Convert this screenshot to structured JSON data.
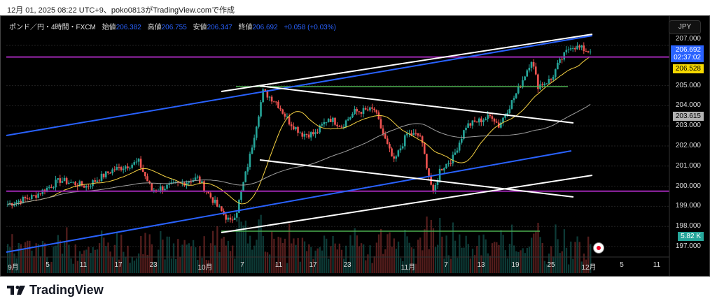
{
  "caption": "12月 01, 2025 08:22 UTC+9、poko0813がTradingView.comで作成",
  "legend": {
    "symbol": "ポンド／円・4時間・FXCM",
    "open_label": "始値",
    "open": "206.382",
    "high_label": "高値",
    "high": "206.755",
    "low_label": "安値",
    "low": "206.347",
    "close_label": "終値",
    "close": "206.692",
    "change": "+0.058 (+0.03%)"
  },
  "currency": "JPY",
  "price_axis": [
    "207.000",
    "205.000",
    "204.000",
    "203.000",
    "202.000",
    "201.000",
    "200.000",
    "199.000",
    "198.000",
    "197.000"
  ],
  "tags": {
    "last_price": "206.692",
    "countdown": "02:37:02",
    "ma_fast": "206.528",
    "ma_slow": "203.615",
    "volume": "5.82 K"
  },
  "time_axis": [
    "9月",
    "5",
    "11",
    "17",
    "23",
    "10月",
    "7",
    "11",
    "17",
    "23",
    "11月",
    "7",
    "13",
    "19",
    "25",
    "12月",
    "5",
    "11"
  ],
  "colors": {
    "up": "#26a69a",
    "down": "#ef5350",
    "blue_line": "#2962ff",
    "purple": "#9c27b0",
    "green": "#4caf50",
    "ma_fast": "#f5d142",
    "ma_slow": "#9e9e9e"
  },
  "chart_data": {
    "type": "candlestick",
    "price_path": [
      [
        0,
        199.1
      ],
      [
        4,
        199.5
      ],
      [
        8,
        200.3
      ],
      [
        12,
        200.0
      ],
      [
        16,
        200.8
      ],
      [
        20,
        201.2
      ],
      [
        22,
        199.8
      ],
      [
        26,
        200.1
      ],
      [
        29,
        200.4
      ],
      [
        32,
        199.0
      ],
      [
        34,
        198.2
      ],
      [
        35,
        198.8
      ],
      [
        37,
        201.5
      ],
      [
        39,
        204.7
      ],
      [
        41,
        204.2
      ],
      [
        43,
        203.2
      ],
      [
        45,
        202.6
      ],
      [
        47,
        202.6
      ],
      [
        49,
        203.4
      ],
      [
        51,
        203.0
      ],
      [
        53,
        203.7
      ],
      [
        56,
        203.8
      ],
      [
        58,
        202.0
      ],
      [
        59,
        201.2
      ],
      [
        61,
        202.6
      ],
      [
        63,
        202.5
      ],
      [
        65,
        199.6
      ],
      [
        66,
        200.8
      ],
      [
        68,
        201.4
      ],
      [
        70,
        203.0
      ],
      [
        74,
        203.5
      ],
      [
        75,
        203.0
      ],
      [
        78,
        204.8
      ],
      [
        80,
        206.3
      ],
      [
        81,
        205.0
      ],
      [
        83,
        205.3
      ],
      [
        84,
        206.0
      ],
      [
        86,
        207.0
      ],
      [
        88,
        206.8
      ],
      [
        89,
        206.692
      ]
    ],
    "ylim": [
      196.8,
      208.4
    ]
  }
}
